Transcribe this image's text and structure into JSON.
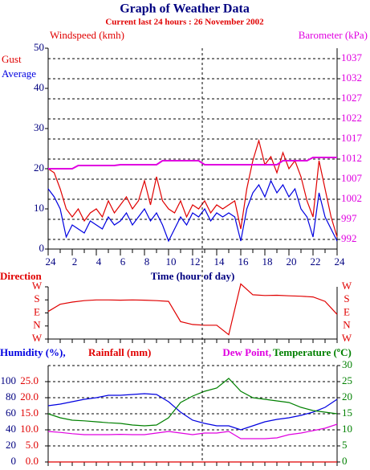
{
  "chart_data": [
    {
      "type": "line",
      "title": "Graph of Weather Data",
      "subtitle": "Current last 24 hours : 26 November 2002",
      "ylabel": "Windspeed (kmh)",
      "y2label": "Barometer (kPa)",
      "xlabel": "Time (hour of day)",
      "marker_x": 12.8,
      "x": [
        0,
        0.5,
        1,
        1.5,
        2,
        2.5,
        3,
        3.5,
        4,
        4.5,
        5,
        5.5,
        6,
        6.5,
        7,
        7.5,
        8,
        8.5,
        9,
        9.5,
        10,
        10.5,
        11,
        11.5,
        12,
        12.5,
        13,
        13.5,
        14,
        14.5,
        15,
        15.5,
        16,
        16.5,
        17,
        17.5,
        18,
        18.5,
        19,
        19.5,
        20,
        20.5,
        21,
        21.5,
        22,
        22.5,
        23,
        23.5,
        24
      ],
      "xlim": [
        0,
        24
      ],
      "xticks": [
        {
          "value": 0,
          "label": "24"
        },
        2,
        4,
        6,
        8,
        10,
        12,
        14,
        16,
        18,
        20,
        22,
        {
          "value": 24,
          "label": "24"
        }
      ],
      "ylim": [
        0,
        50
      ],
      "yticks": [
        0,
        10,
        20,
        30,
        40,
        50
      ],
      "ycolor": "#000080",
      "y2lim": [
        989.6,
        1039.6
      ],
      "y2ticks": [
        992,
        997,
        1002,
        1007,
        1012,
        1017,
        1022,
        1027,
        1032,
        1037
      ],
      "y2color": "#e000e0",
      "grid": true,
      "series": [
        {
          "name": "Gust",
          "color": "#e00000",
          "axis": "y",
          "values": [
            20,
            19,
            15,
            10,
            8,
            10,
            7,
            9,
            10,
            8,
            12,
            9,
            11,
            13,
            10,
            12,
            17,
            11,
            18,
            12,
            10,
            9,
            12,
            8,
            11,
            10,
            12,
            9,
            11,
            10,
            11,
            12,
            5,
            15,
            22,
            27,
            21,
            23,
            19,
            24,
            20,
            22,
            18,
            12,
            8,
            22,
            15,
            8,
            3
          ]
        },
        {
          "name": "Average",
          "color": "#0000e0",
          "axis": "y",
          "values": [
            15,
            13,
            10,
            3,
            6,
            5,
            4,
            7,
            6,
            5,
            8,
            6,
            7,
            9,
            6,
            8,
            10,
            7,
            9,
            6,
            2,
            5,
            8,
            6,
            9,
            8,
            10,
            7,
            9,
            8,
            9,
            8,
            2,
            10,
            14,
            16,
            13,
            17,
            14,
            16,
            13,
            15,
            10,
            8,
            3,
            14,
            8,
            5,
            2
          ]
        },
        {
          "name": "Barometer",
          "color": "#e000e0",
          "axis": "y2",
          "values": [
            1009.6,
            1009.6,
            1009.6,
            1009.6,
            1009.6,
            1010.4,
            1010.4,
            1010.4,
            1010.4,
            1010.4,
            1010.4,
            1010.4,
            1010.6,
            1010.6,
            1010.6,
            1010.6,
            1010.6,
            1010.6,
            1010.6,
            1011.6,
            1011.6,
            1011.6,
            1011.6,
            1011.6,
            1011.6,
            1011.6,
            1010.6,
            1010.6,
            1010.6,
            1010.6,
            1010.6,
            1010.6,
            1010.6,
            1010.6,
            1010.6,
            1010.6,
            1010.6,
            1010.6,
            1010.6,
            1011.6,
            1011.6,
            1011.6,
            1011.6,
            1011.6,
            1012.4,
            1012.4,
            1012.4,
            1012.4,
            1012.4
          ]
        }
      ]
    },
    {
      "type": "line",
      "ylabel": "Direction",
      "x": [
        0,
        1,
        2,
        3,
        4,
        5,
        6,
        7,
        8,
        9,
        10,
        11,
        12,
        13,
        14,
        15,
        16,
        17,
        18,
        19,
        20,
        21,
        22,
        23,
        24
      ],
      "xlim": [
        0,
        24
      ],
      "ylim": [
        -90,
        270
      ],
      "yticks": [
        {
          "value": 270,
          "label": "W"
        },
        {
          "value": 180,
          "label": "S"
        },
        {
          "value": 90,
          "label": "E"
        },
        {
          "value": 0,
          "label": "N"
        },
        {
          "value": -90,
          "label": "W"
        }
      ],
      "ycolor": "#e00000",
      "grid": false,
      "series": [
        {
          "name": "Direction",
          "color": "#e00000",
          "axis": "y",
          "values": [
            100,
            150,
            165,
            175,
            180,
            180,
            178,
            180,
            178,
            175,
            170,
            30,
            10,
            5,
            5,
            -60,
            290,
            215,
            210,
            212,
            208,
            205,
            200,
            170,
            80
          ]
        }
      ]
    },
    {
      "type": "line",
      "x": [
        0,
        1,
        2,
        3,
        4,
        5,
        6,
        7,
        8,
        9,
        10,
        11,
        12,
        13,
        14,
        15,
        16,
        17,
        18,
        19,
        20,
        21,
        22,
        23,
        24
      ],
      "xlim": [
        0,
        24
      ],
      "ylim": [
        0,
        120
      ],
      "yticks": [
        0,
        20,
        40,
        60,
        80,
        100
      ],
      "ycolor": "#000080",
      "y3lim": [
        0,
        30
      ],
      "y3ticks": [
        {
          "value": 0,
          "label": "0.0"
        },
        {
          "value": 5,
          "label": "5.0"
        },
        {
          "value": 10,
          "label": "10.0"
        },
        {
          "value": 15,
          "label": "15.0"
        },
        {
          "value": 20,
          "label": "20.0"
        },
        {
          "value": 25,
          "label": "25.0"
        }
      ],
      "y3color": "#e00000",
      "y2lim": [
        0,
        30
      ],
      "y2ticks": [
        0,
        5,
        10,
        15,
        20,
        25,
        30
      ],
      "y2color": "#008000",
      "grid": true,
      "series": [
        {
          "name": "Humidity (%),",
          "color": "#0000e0",
          "axis": "y",
          "values": [
            70,
            72,
            75,
            78,
            80,
            83,
            83,
            84,
            85,
            84,
            75,
            62,
            52,
            48,
            45,
            45,
            40,
            45,
            50,
            53,
            55,
            58,
            62,
            68,
            78
          ]
        },
        {
          "name": "Rainfall (mm)",
          "color": "#e00000",
          "axis": "y3",
          "values": [
            0,
            0,
            0,
            0,
            0,
            0,
            0,
            0,
            0,
            0,
            0,
            0,
            0,
            0,
            0,
            0,
            0,
            0,
            0,
            0,
            0,
            0,
            0,
            0,
            0
          ]
        },
        {
          "name": "Dew Point,",
          "color": "#e000e0",
          "axis": "y2",
          "values": [
            9.5,
            9.2,
            8.8,
            8.5,
            8.5,
            8.5,
            8.6,
            8.5,
            8.5,
            9,
            9.5,
            9,
            8.5,
            9,
            9,
            9.5,
            7.25,
            7.25,
            7.25,
            7.5,
            8.5,
            9,
            9.75,
            10.5,
            11.75
          ]
        },
        {
          "name": "Temperature (ºC)",
          "color": "#008000",
          "axis": "y2",
          "values": [
            15,
            13.75,
            13,
            12.8,
            12.5,
            12.2,
            12,
            11.5,
            11.25,
            11.5,
            13.75,
            18.5,
            20.5,
            22,
            23,
            26,
            22,
            20,
            19.5,
            19,
            18.5,
            17,
            16,
            15.5,
            15
          ]
        }
      ]
    }
  ]
}
